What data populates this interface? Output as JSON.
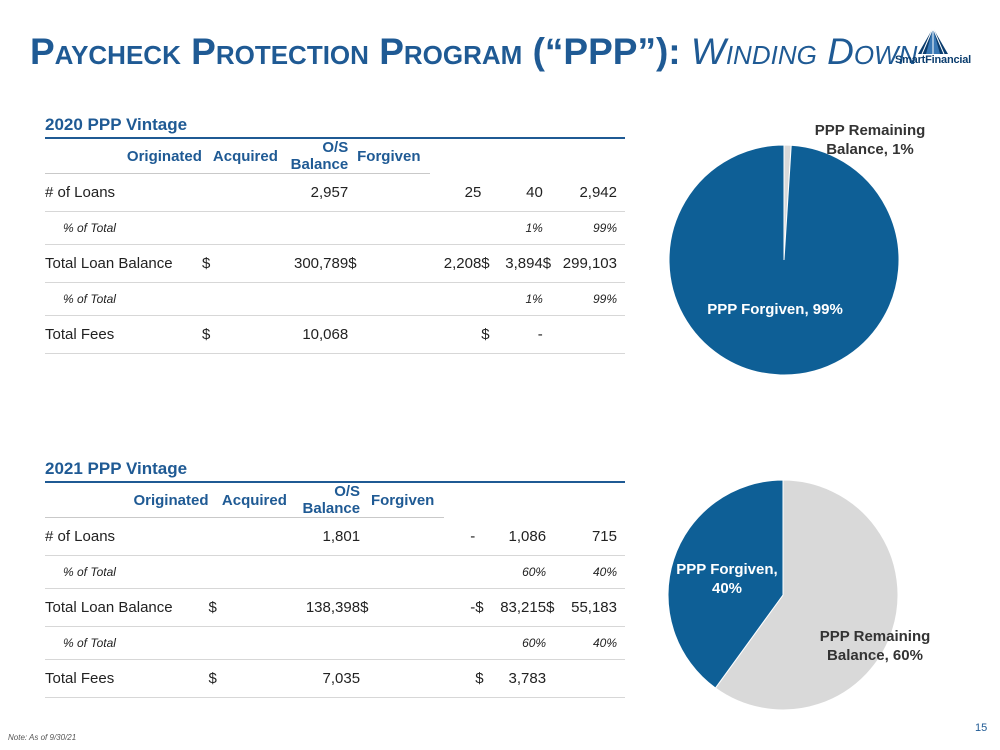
{
  "header": {
    "title_main": "Paycheck Protection Program (“PPP”):",
    "title_sub": "Winding Down",
    "logo_text": "SmartFinancial"
  },
  "tables": [
    {
      "title": "2020 PPP Vintage",
      "columns": [
        "Originated",
        "Acquired",
        "O/S Balance",
        "Forgiven"
      ],
      "rows": [
        {
          "label": "# of Loans",
          "cells": [
            {
              "cur": "",
              "val": "2,957"
            },
            {
              "cur": "",
              "val": "25"
            },
            {
              "cur": "",
              "val": "40"
            },
            {
              "cur": "",
              "val": "2,942"
            }
          ]
        },
        {
          "label": "% of Total",
          "pct": true,
          "cells": [
            {
              "cur": "",
              "val": ""
            },
            {
              "cur": "",
              "val": ""
            },
            {
              "cur": "",
              "val": "1%"
            },
            {
              "cur": "",
              "val": "99%"
            }
          ]
        },
        {
          "label": "Total Loan Balance",
          "cells": [
            {
              "cur": "$",
              "val": "300,789"
            },
            {
              "cur": "$",
              "val": "2,208"
            },
            {
              "cur": "$",
              "val": "3,894"
            },
            {
              "cur": "$",
              "val": "299,103"
            }
          ]
        },
        {
          "label": "% of Total",
          "pct": true,
          "cells": [
            {
              "cur": "",
              "val": ""
            },
            {
              "cur": "",
              "val": ""
            },
            {
              "cur": "",
              "val": "1%"
            },
            {
              "cur": "",
              "val": "99%"
            }
          ]
        },
        {
          "label": "Total Fees",
          "cells": [
            {
              "cur": "$",
              "val": "10,068"
            },
            {
              "cur": "",
              "val": ""
            },
            {
              "cur": "$",
              "val": "-"
            },
            {
              "cur": "",
              "val": ""
            }
          ]
        }
      ]
    },
    {
      "title": "2021 PPP Vintage",
      "columns": [
        "Originated",
        "Acquired",
        "O/S Balance",
        "Forgiven"
      ],
      "rows": [
        {
          "label": "# of Loans",
          "cells": [
            {
              "cur": "",
              "val": "1,801"
            },
            {
              "cur": "",
              "val": "-"
            },
            {
              "cur": "",
              "val": "1,086"
            },
            {
              "cur": "",
              "val": "715"
            }
          ]
        },
        {
          "label": "% of Total",
          "pct": true,
          "cells": [
            {
              "cur": "",
              "val": ""
            },
            {
              "cur": "",
              "val": ""
            },
            {
              "cur": "",
              "val": "60%"
            },
            {
              "cur": "",
              "val": "40%"
            }
          ]
        },
        {
          "label": "Total Loan Balance",
          "cells": [
            {
              "cur": "$",
              "val": "138,398"
            },
            {
              "cur": "$",
              "val": "-"
            },
            {
              "cur": "$",
              "val": "83,215"
            },
            {
              "cur": "$",
              "val": "55,183"
            }
          ]
        },
        {
          "label": "% of Total",
          "pct": true,
          "cells": [
            {
              "cur": "",
              "val": ""
            },
            {
              "cur": "",
              "val": ""
            },
            {
              "cur": "",
              "val": "60%"
            },
            {
              "cur": "",
              "val": "40%"
            }
          ]
        },
        {
          "label": "Total Fees",
          "cells": [
            {
              "cur": "$",
              "val": "7,035"
            },
            {
              "cur": "",
              "val": ""
            },
            {
              "cur": "$",
              "val": "3,783"
            },
            {
              "cur": "",
              "val": ""
            }
          ]
        }
      ]
    }
  ],
  "chart_data": [
    {
      "type": "pie",
      "slices": [
        {
          "label": "PPP Remaining Balance, 1%",
          "value": 1,
          "color": "#d9d9d9"
        },
        {
          "label": "PPP Forgiven, 99%",
          "value": 99,
          "color": "#0e5f96"
        }
      ]
    },
    {
      "type": "pie",
      "slices": [
        {
          "label": "PPP Remaining Balance, 60%",
          "value": 60,
          "color": "#d9d9d9"
        },
        {
          "label": "PPP Forgiven, 40%",
          "value": 40,
          "color": "#0e5f96"
        }
      ]
    }
  ],
  "footer": {
    "note": "Note: As of 9/30/21",
    "page": "15"
  },
  "colors": {
    "brand": "#1f5a94",
    "forgiven": "#0e5f96",
    "remaining": "#d9d9d9"
  }
}
